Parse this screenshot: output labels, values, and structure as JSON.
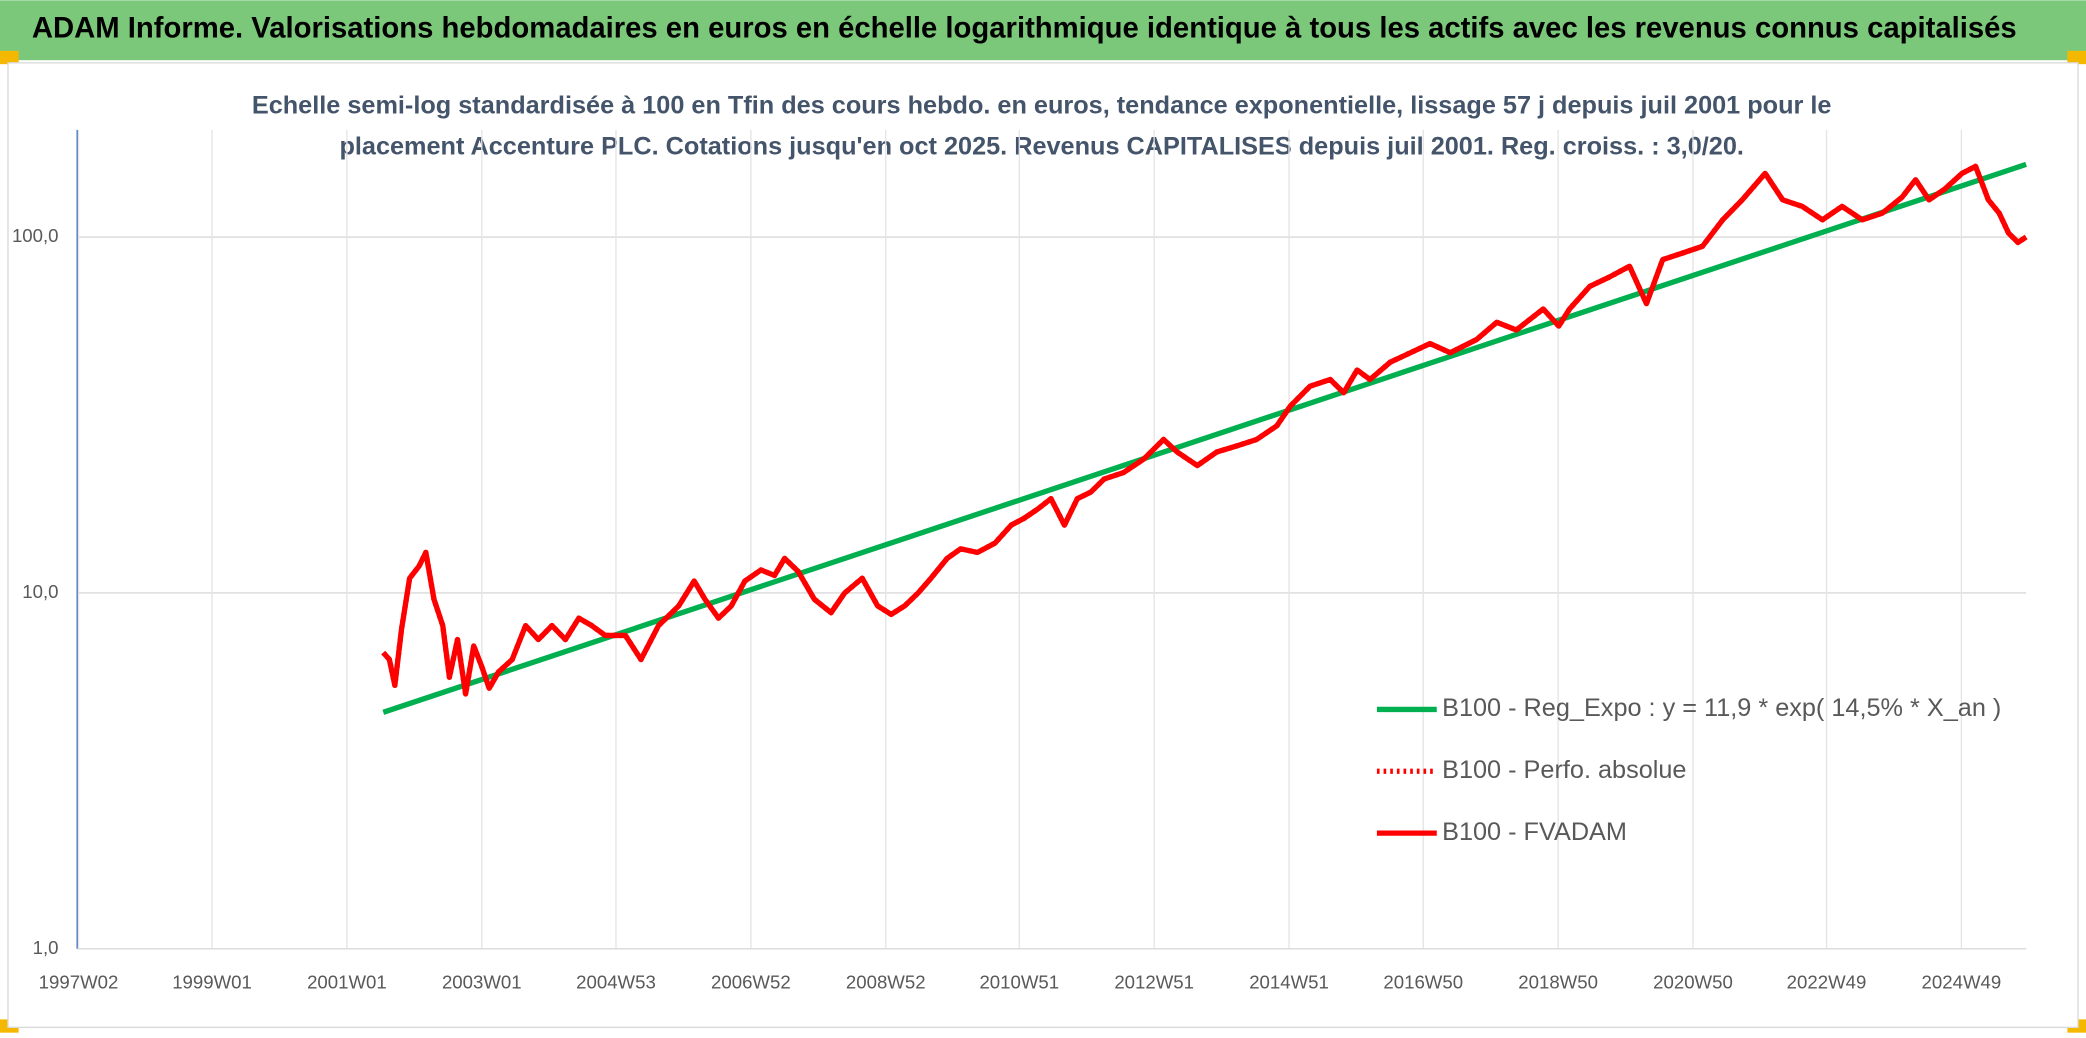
{
  "chart_data": {
    "type": "line",
    "header": "ADAM Informe. Valorisations hebdomadaires en euros en échelle logarithmique identique à tous les actifs avec les revenus connus capitalisés",
    "title": [
      "Echelle semi-log standardisée à 100 en Tfin des cours hebdo. en euros, tendance exponentielle, lissage 57 j depuis juil 2001 pour le",
      "placement Accenture PLC. Cotations jusqu'en oct 2025. Revenus CAPITALISES depuis juil 2001. Reg. croiss. : 3,0/20."
    ],
    "log_scale": true,
    "grid": true,
    "legend": "right",
    "xlim": [
      1997.0,
      2025.9
    ],
    "xticks": [
      {
        "value": 1997.02,
        "label": "1997W02"
      },
      {
        "value": 1999.0,
        "label": "1999W01"
      },
      {
        "value": 2001.0,
        "label": "2001W01"
      },
      {
        "value": 2003.0,
        "label": "2003W01"
      },
      {
        "value": 2004.99,
        "label": "2004W53"
      },
      {
        "value": 2006.99,
        "label": "2006W52"
      },
      {
        "value": 2008.99,
        "label": "2008W52"
      },
      {
        "value": 2010.97,
        "label": "2010W51"
      },
      {
        "value": 2012.97,
        "label": "2012W51"
      },
      {
        "value": 2014.97,
        "label": "2014W51"
      },
      {
        "value": 2016.96,
        "label": "2016W50"
      },
      {
        "value": 2018.96,
        "label": "2018W50"
      },
      {
        "value": 2020.96,
        "label": "2020W50"
      },
      {
        "value": 2022.94,
        "label": "2022W49"
      },
      {
        "value": 2024.94,
        "label": "2024W49"
      }
    ],
    "ylim": [
      1,
      200
    ],
    "yticks": [
      {
        "value": 1,
        "label": "1,0"
      },
      {
        "value": 10,
        "label": "10,0"
      },
      {
        "value": 100,
        "label": "100,0"
      }
    ],
    "series": [
      {
        "name": "B100 - Reg_Expo : y = 11,9 * exp( 14,5% *  X_an )",
        "color": "#00b050",
        "style": "solid",
        "x": [
          2001.54,
          2025.9
        ],
        "values": [
          4.62,
          160
        ]
      },
      {
        "name": "B100 - Perfo. absolue",
        "color": "#ff0000",
        "style": "dotted",
        "x": [
          2001.54,
          2001.63,
          2001.71,
          2001.81,
          2001.93,
          2002.07,
          2002.17,
          2002.29,
          2002.42,
          2002.52,
          2002.64,
          2002.76,
          2002.88,
          2003.0,
          2003.11,
          2003.25,
          2003.45,
          2003.65,
          2003.84,
          2004.04,
          2004.24,
          2004.44,
          2004.63,
          2004.83,
          2005.13,
          2005.36,
          2005.62,
          2005.92,
          2006.15,
          2006.31,
          2006.51,
          2006.7,
          2006.9,
          2007.14,
          2007.34,
          2007.49,
          2007.69,
          2007.93,
          2008.18,
          2008.38,
          2008.64,
          2008.87,
          2009.07,
          2009.27,
          2009.47,
          2009.66,
          2009.9,
          2010.1,
          2010.35,
          2010.61,
          2010.85,
          2011.04,
          2011.24,
          2011.44,
          2011.64,
          2011.83,
          2012.03,
          2012.23,
          2012.52,
          2012.82,
          2013.11,
          2013.31,
          2013.61,
          2013.9,
          2014.2,
          2014.49,
          2014.79,
          2014.99,
          2015.28,
          2015.58,
          2015.78,
          2015.98,
          2016.17,
          2016.47,
          2016.77,
          2017.06,
          2017.36,
          2017.75,
          2018.05,
          2018.34,
          2018.74,
          2018.97,
          2019.13,
          2019.43,
          2019.72,
          2020.02,
          2020.27,
          2020.51,
          2020.81,
          2021.1,
          2021.4,
          2021.69,
          2022.03,
          2022.29,
          2022.58,
          2022.88,
          2023.17,
          2023.47,
          2023.77,
          2024.06,
          2024.26,
          2024.46,
          2024.69,
          2024.95,
          2025.15,
          2025.34,
          2025.5,
          2025.64,
          2025.78,
          2025.9
        ],
        "values": [
          6.8,
          6.5,
          5.5,
          7.9,
          11.0,
          11.9,
          13.0,
          9.6,
          8.1,
          5.8,
          7.4,
          5.2,
          7.1,
          6.2,
          5.4,
          6.0,
          6.5,
          8.1,
          7.4,
          8.1,
          7.4,
          8.5,
          8.1,
          7.6,
          7.6,
          6.5,
          8.1,
          9.2,
          10.8,
          9.6,
          8.5,
          9.2,
          10.8,
          11.6,
          11.2,
          12.5,
          11.5,
          9.6,
          8.8,
          10.0,
          11.0,
          9.2,
          8.7,
          9.2,
          10.0,
          11.0,
          12.5,
          13.3,
          13.0,
          13.8,
          15.5,
          16.2,
          17.2,
          18.4,
          15.5,
          18.4,
          19.2,
          20.9,
          21.8,
          23.8,
          27.0,
          24.9,
          22.8,
          24.9,
          25.9,
          27.0,
          29.5,
          33.5,
          38.1,
          39.8,
          36.5,
          42.3,
          39.8,
          44.5,
          47.3,
          50.2,
          47.3,
          51.5,
          57.6,
          54.8,
          62.8,
          56.2,
          62.8,
          72.7,
          77.2,
          82.8,
          65.0,
          86.4,
          90.2,
          94.2,
          111.8,
          127.2,
          151,
          127.2,
          121.9,
          111.8,
          121.9,
          111.8,
          116.8,
          129.4,
          144.8,
          127.2,
          136.3,
          151,
          158,
          127.2,
          116.8,
          102.6,
          96.6,
          100
        ]
      },
      {
        "name": "B100 - FVADAM",
        "color": "#ff0000",
        "style": "solid",
        "x": [
          2001.54,
          2001.63,
          2001.71,
          2001.81,
          2001.93,
          2002.07,
          2002.17,
          2002.29,
          2002.42,
          2002.52,
          2002.64,
          2002.76,
          2002.88,
          2003.0,
          2003.11,
          2003.25,
          2003.45,
          2003.65,
          2003.84,
          2004.04,
          2004.24,
          2004.44,
          2004.63,
          2004.83,
          2005.13,
          2005.36,
          2005.62,
          2005.92,
          2006.15,
          2006.31,
          2006.51,
          2006.7,
          2006.9,
          2007.14,
          2007.34,
          2007.49,
          2007.69,
          2007.93,
          2008.18,
          2008.38,
          2008.64,
          2008.87,
          2009.07,
          2009.27,
          2009.47,
          2009.66,
          2009.9,
          2010.1,
          2010.35,
          2010.61,
          2010.85,
          2011.04,
          2011.24,
          2011.44,
          2011.64,
          2011.83,
          2012.03,
          2012.23,
          2012.52,
          2012.82,
          2013.11,
          2013.31,
          2013.61,
          2013.9,
          2014.2,
          2014.49,
          2014.79,
          2014.99,
          2015.28,
          2015.58,
          2015.78,
          2015.98,
          2016.17,
          2016.47,
          2016.77,
          2017.06,
          2017.36,
          2017.75,
          2018.05,
          2018.34,
          2018.74,
          2018.97,
          2019.13,
          2019.43,
          2019.72,
          2020.02,
          2020.27,
          2020.51,
          2020.81,
          2021.1,
          2021.4,
          2021.69,
          2022.03,
          2022.29,
          2022.58,
          2022.88,
          2023.17,
          2023.47,
          2023.77,
          2024.06,
          2024.26,
          2024.46,
          2024.69,
          2024.95,
          2025.15,
          2025.34,
          2025.5,
          2025.64,
          2025.78,
          2025.9
        ],
        "values": [
          6.8,
          6.5,
          5.5,
          7.9,
          11.0,
          11.9,
          13.0,
          9.6,
          8.1,
          5.8,
          7.4,
          5.2,
          7.1,
          6.2,
          5.4,
          6.0,
          6.5,
          8.1,
          7.4,
          8.1,
          7.4,
          8.5,
          8.1,
          7.6,
          7.6,
          6.5,
          8.1,
          9.2,
          10.8,
          9.6,
          8.5,
          9.2,
          10.8,
          11.6,
          11.2,
          12.5,
          11.5,
          9.6,
          8.8,
          10.0,
          11.0,
          9.2,
          8.7,
          9.2,
          10.0,
          11.0,
          12.5,
          13.3,
          13.0,
          13.8,
          15.5,
          16.2,
          17.2,
          18.4,
          15.5,
          18.4,
          19.2,
          20.9,
          21.8,
          23.8,
          27.0,
          24.9,
          22.8,
          24.9,
          25.9,
          27.0,
          29.5,
          33.5,
          38.1,
          39.8,
          36.5,
          42.3,
          39.8,
          44.5,
          47.3,
          50.2,
          47.3,
          51.5,
          57.6,
          54.8,
          62.8,
          56.2,
          62.8,
          72.7,
          77.2,
          82.8,
          65.0,
          86.4,
          90.2,
          94.2,
          111.8,
          127.2,
          151,
          127.2,
          121.9,
          111.8,
          121.9,
          111.8,
          116.8,
          129.4,
          144.8,
          127.2,
          136.3,
          151,
          158,
          127.2,
          116.8,
          102.6,
          96.6,
          100
        ]
      }
    ]
  }
}
